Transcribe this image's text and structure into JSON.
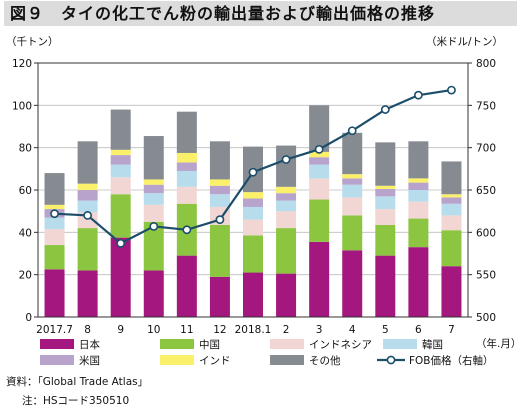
{
  "title": "図９　タイの化工でん粉の輸出量および輸出価格の推移",
  "source_line": "資料：「Global Trade Atlas」",
  "note_line": "注：HSコード350510",
  "chart_data": {
    "type": "bar",
    "stacked": true,
    "ylabel_left": "（千トン）",
    "ylabel_right": "（米ドル/トン）",
    "xlabel": "（年.月）",
    "categories": [
      "2017.7",
      "8",
      "9",
      "10",
      "11",
      "12",
      "2018.1",
      "2",
      "3",
      "4",
      "5",
      "6",
      "7"
    ],
    "ylim_left": [
      0,
      120
    ],
    "ylim_right": [
      500,
      800
    ],
    "yticks_left": [
      0,
      20,
      40,
      60,
      80,
      100,
      120
    ],
    "yticks_right": [
      500,
      550,
      600,
      650,
      700,
      750,
      800
    ],
    "grid": true,
    "legend_position": "bottom",
    "series": [
      {
        "name": "日本",
        "color": "#a3177e",
        "values": [
          22.5,
          22,
          37.5,
          22,
          29,
          19,
          21,
          20.5,
          35.5,
          31.5,
          29,
          33,
          24
        ]
      },
      {
        "name": "中国",
        "color": "#8cc640",
        "values": [
          11.5,
          20,
          20.5,
          23,
          24.5,
          24.5,
          17.5,
          21.5,
          20,
          16.5,
          14.5,
          13.5,
          17
        ]
      },
      {
        "name": "インドネシア",
        "color": "#f2d6d3",
        "values": [
          7.5,
          7.5,
          8,
          8,
          8,
          8.5,
          7.5,
          8,
          10,
          8.5,
          7.5,
          8,
          7
        ]
      },
      {
        "name": "韓国",
        "color": "#b7dcec",
        "values": [
          5.5,
          5.5,
          6,
          5.5,
          7.5,
          6,
          6,
          5,
          6.5,
          6,
          6,
          5.5,
          5.5
        ]
      },
      {
        "name": "米国",
        "color": "#b8a3cc",
        "values": [
          4,
          5,
          4.5,
          4,
          4,
          4,
          4,
          3.5,
          3.5,
          3,
          3.5,
          3.5,
          3
        ]
      },
      {
        "name": "インド",
        "color": "#fbf06a",
        "values": [
          2,
          3,
          2.5,
          2.5,
          4.5,
          3,
          3,
          3,
          2.5,
          2,
          1.5,
          2,
          1.5
        ]
      },
      {
        "name": "その他",
        "color": "#858b91",
        "values": [
          15,
          20,
          19,
          20.5,
          19.5,
          18,
          21.5,
          19.5,
          22,
          19.5,
          20.5,
          17.5,
          15.5
        ]
      }
    ],
    "line_series": {
      "name": "FOB価格（右軸）",
      "color": "#1c4e6b",
      "axis": "right",
      "values": [
        622,
        620,
        587,
        607,
        603,
        615,
        671,
        686,
        698,
        720,
        745,
        762,
        768
      ]
    }
  }
}
